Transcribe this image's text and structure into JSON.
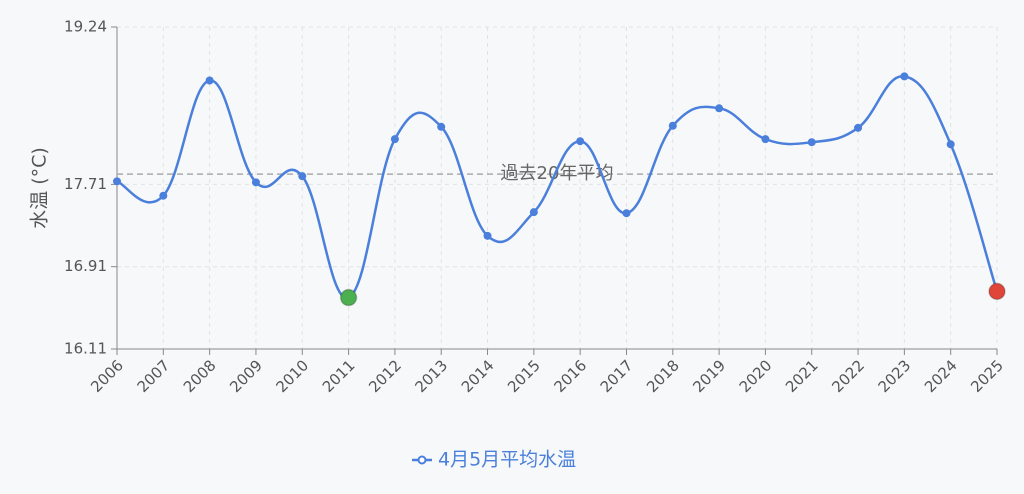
{
  "chart_data": {
    "type": "line",
    "y_label": "水温 (°C)",
    "categories": [
      "2006",
      "2007",
      "2008",
      "2009",
      "2010",
      "2011",
      "2012",
      "2013",
      "2014",
      "2015",
      "2016",
      "2017",
      "2018",
      "2019",
      "2020",
      "2021",
      "2022",
      "2023",
      "2024",
      "2025"
    ],
    "series": [
      {
        "name": "4月5月平均水温",
        "color": "#4a7fdc",
        "values": [
          17.74,
          17.6,
          18.72,
          17.73,
          17.79,
          16.61,
          18.15,
          18.27,
          17.21,
          17.44,
          18.13,
          17.43,
          18.28,
          18.45,
          18.15,
          18.12,
          18.26,
          18.76,
          18.1,
          16.67
        ]
      }
    ],
    "ylim": [
      16.11,
      19.24
    ],
    "yticks": [
      16.11,
      16.91,
      17.71,
      19.24
    ],
    "grid": true,
    "reference_line": {
      "label": "過去20年平均",
      "value": 17.81,
      "color": "#aaaaaa"
    },
    "highlight_points": [
      {
        "category": "2011",
        "color": "#4caf50"
      },
      {
        "category": "2025",
        "color": "#e0453a"
      }
    ],
    "legend": "bottom"
  }
}
